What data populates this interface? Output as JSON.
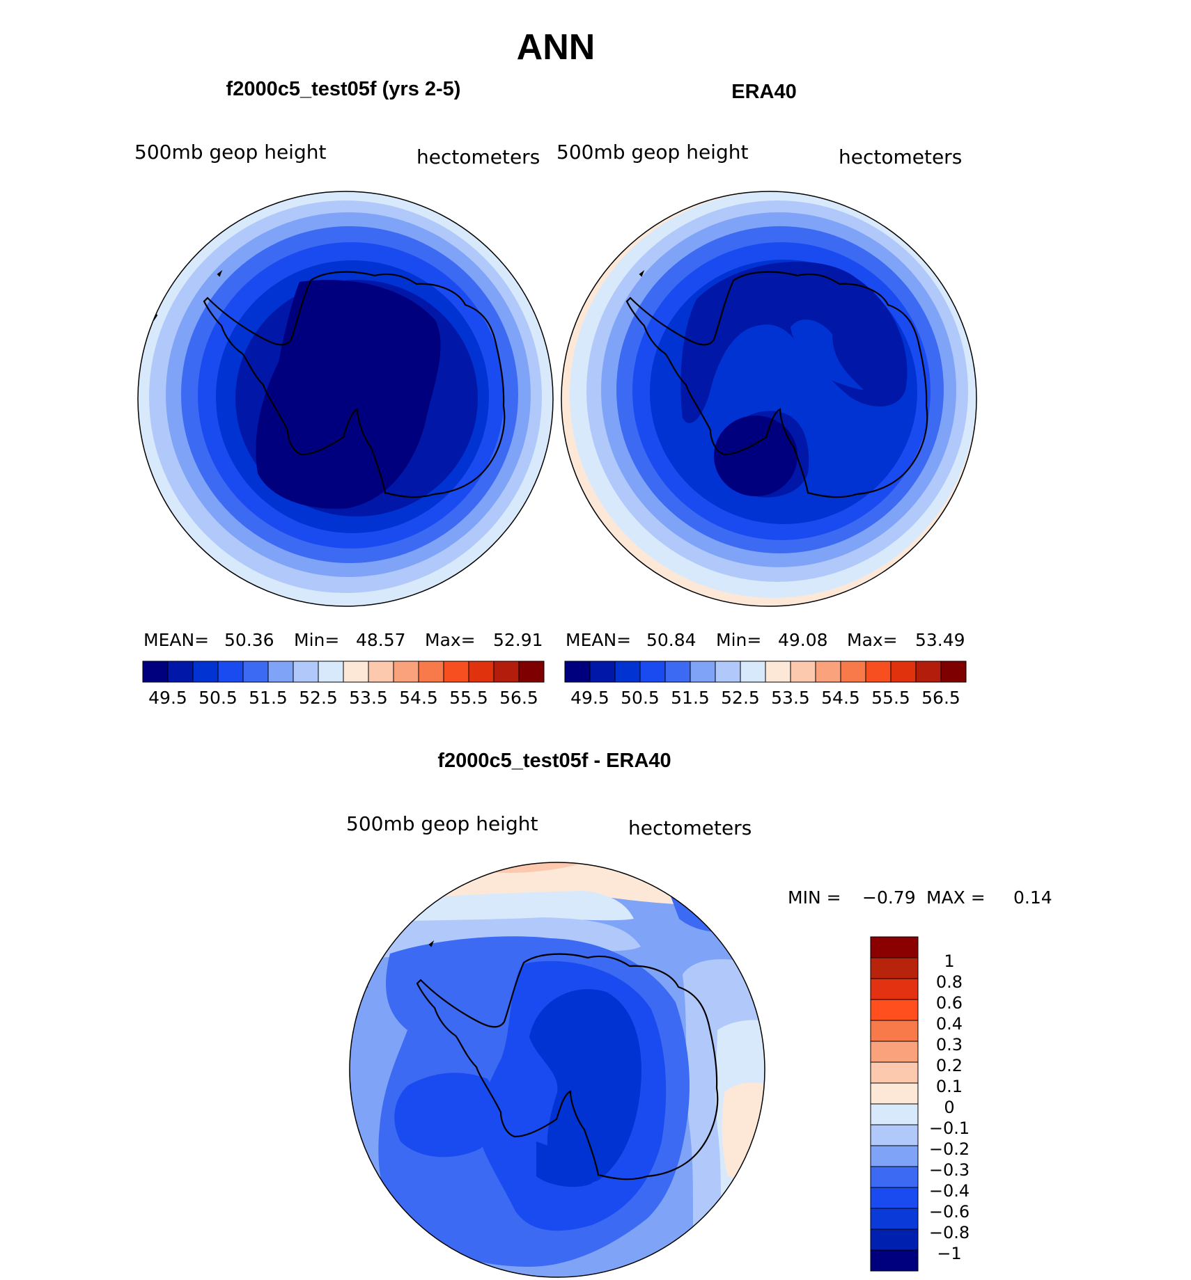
{
  "title": "ANN",
  "panels": [
    {
      "header": "f2000c5_test05f (yrs 2-5)",
      "left_label": "500mb  geop  height",
      "right_label": "hectometers",
      "stats": {
        "mean_label": "MEAN=",
        "mean": "50.36",
        "min_label": "Min=",
        "min": "48.57",
        "max_label": "Max=",
        "max": "52.91"
      },
      "field": "model"
    },
    {
      "header": "ERA40",
      "left_label": "500mb  geop  height",
      "right_label": "hectometers",
      "stats": {
        "mean_label": "MEAN=",
        "mean": "50.84",
        "min_label": "Min=",
        "min": "49.08",
        "max_label": "Max=",
        "max": "53.49"
      },
      "field": "obs"
    }
  ],
  "abs_colorbar": {
    "colors": [
      "#00007f",
      "#0017a8",
      "#0033d1",
      "#1a4bf0",
      "#3c6af2",
      "#7fa3f7",
      "#b1c9fa",
      "#d9e9fc",
      "#fde8d8",
      "#fcc8ae",
      "#faa27c",
      "#f87a4a",
      "#f74f1f",
      "#e1320e",
      "#b31d0b",
      "#7f0000"
    ],
    "labels": [
      "49.5",
      "50.5",
      "51.5",
      "52.5",
      "53.5",
      "54.5",
      "55.5",
      "56.5"
    ]
  },
  "diff_panel": {
    "header": "f2000c5_test05f - ERA40",
    "left_label": "500mb  geop  height",
    "right_label": "hectometers",
    "stats": {
      "min_label": "MIN =",
      "min": "−0.79",
      "max_label": "MAX =",
      "max": "0.14"
    },
    "colorbar": {
      "colors_top_to_bottom": [
        "#8b0000",
        "#b8230b",
        "#e33212",
        "#ff4f1f",
        "#f87a4a",
        "#faa27c",
        "#fcc8ae",
        "#fde8d8",
        "#d9e9fc",
        "#b1c9fa",
        "#7fa3f7",
        "#3c6af2",
        "#1a4bf0",
        "#0a3ad8",
        "#0021b0",
        "#00007f"
      ],
      "labels_top_to_bottom": [
        "1",
        "0.8",
        "0.6",
        "0.4",
        "0.3",
        "0.2",
        "0.1",
        "0",
        "−0.1",
        "−0.2",
        "−0.3",
        "−0.4",
        "−0.6",
        "−0.8",
        "−1"
      ]
    }
  }
}
